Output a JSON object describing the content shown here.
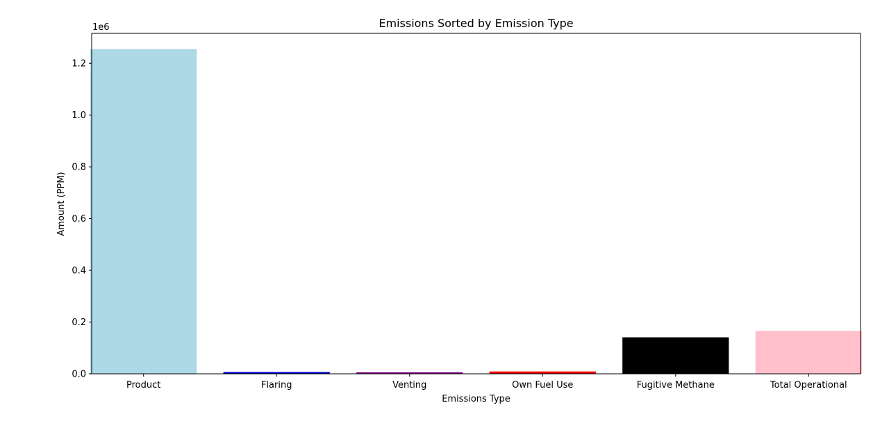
{
  "chart_data": {
    "type": "bar",
    "title": "Emissions Sorted by Emission Type",
    "xlabel": "Emissions Type",
    "ylabel": "Amount (PPM)",
    "y_offset_text": "1e6",
    "y_scale_factor": 1000000,
    "categories": [
      "Product",
      "Flaring",
      "Venting",
      "Own Fuel Use",
      "Fugitive Methane",
      "Total Operational"
    ],
    "values": [
      1255000,
      7000,
      6000,
      9000,
      141000,
      166000
    ],
    "colors": [
      "#add8e6",
      "#0000cd",
      "#800080",
      "#ff0000",
      "#000000",
      "#ffc0cb"
    ],
    "ylim": [
      0,
      1316000
    ],
    "yticks": [
      0,
      200000,
      400000,
      600000,
      800000,
      1000000,
      1200000
    ],
    "ytick_labels": [
      "0.0",
      "0.2",
      "0.4",
      "0.6",
      "0.8",
      "1.0",
      "1.2"
    ],
    "grid": false,
    "legend": "none"
  }
}
